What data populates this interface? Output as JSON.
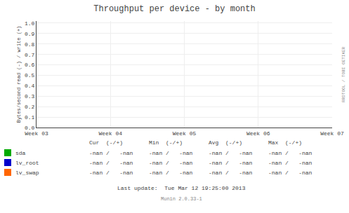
{
  "chart_data": {
    "type": "line",
    "title": "Throughput per device - by month",
    "ylabel": "Bytes/second read (-) / write (+)",
    "categories": [
      "Week 03",
      "Week 04",
      "Week 05",
      "Week 06",
      "Week 07"
    ],
    "series": [
      {
        "name": "sda",
        "color": "#00aa00",
        "values": [
          null,
          null,
          null,
          null,
          null
        ]
      },
      {
        "name": "lv_root",
        "color": "#0000cc",
        "values": [
          null,
          null,
          null,
          null,
          null
        ]
      },
      {
        "name": "lv_swap",
        "color": "#ff6600",
        "values": [
          null,
          null,
          null,
          null,
          null
        ]
      }
    ],
    "ylim": [
      0.0,
      1.02
    ],
    "yticks": [
      {
        "value": 0.0,
        "label": "0.0"
      },
      0.1,
      0.2,
      0.3,
      0.4,
      0.5,
      0.6,
      0.7,
      0.8,
      0.9,
      {
        "value": 1.0,
        "label": "1.0"
      }
    ],
    "grid": true,
    "annotations": [
      "Cur  (-/+)",
      "Min  (-/+)",
      "Avg  (-/+)",
      "Max  (-/+)",
      "-nan /   -nan",
      "-nan /   -nan",
      "-nan /   -nan",
      "-nan /   -nan",
      "-nan /   -nan",
      "-nan /   -nan",
      "-nan /   -nan",
      "-nan /   -nan",
      "-nan /   -nan",
      "-nan /   -nan",
      "-nan /   -nan",
      "-nan /   -nan",
      "Last update:  Tue Mar 12 19:25:00 2013",
      "Munin 2.0.33-1",
      "RRDTOOL / TOBI OETIKER"
    ]
  }
}
